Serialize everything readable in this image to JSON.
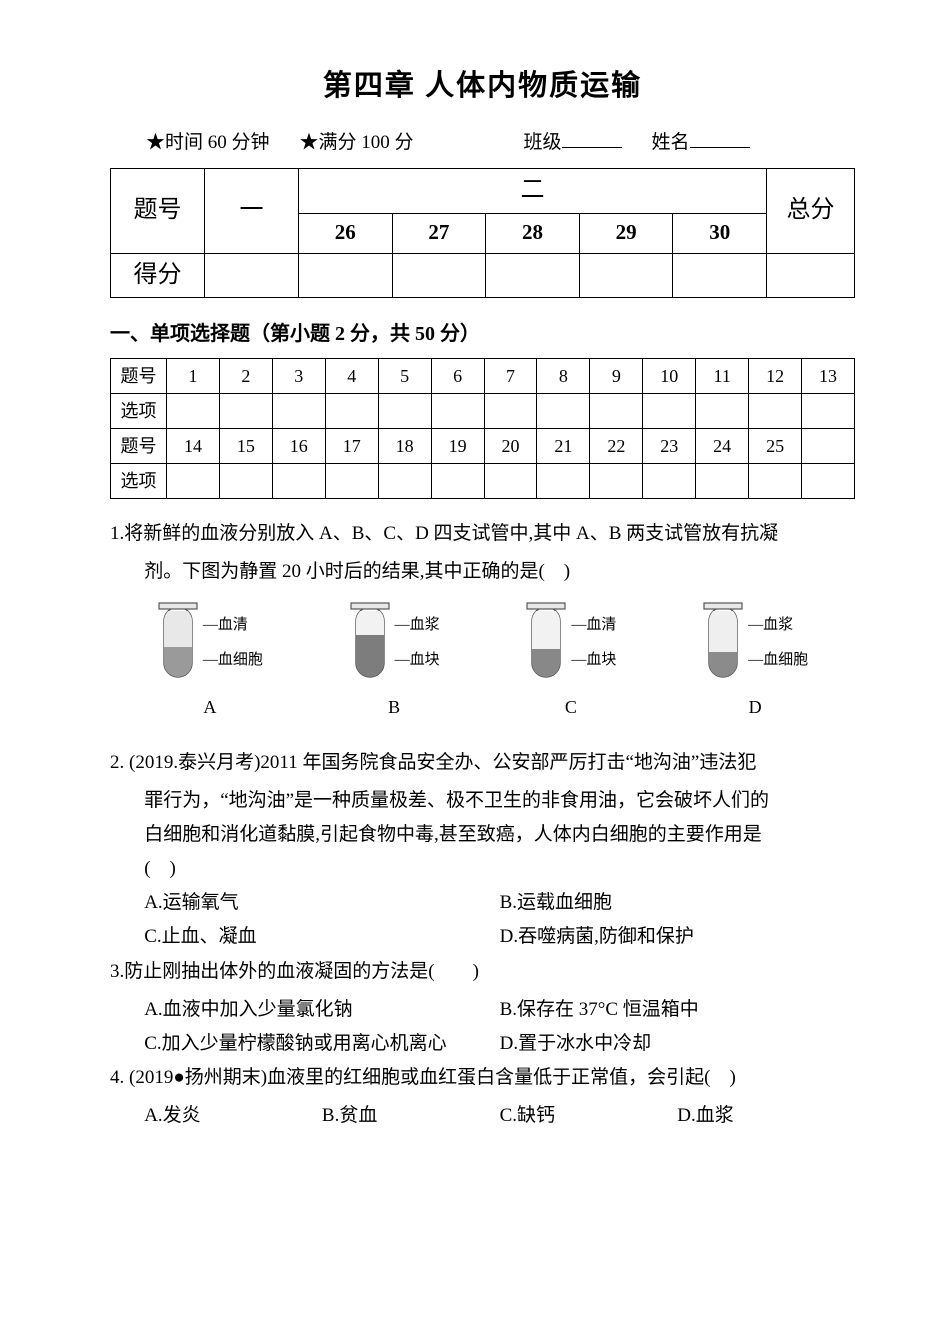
{
  "title": "第四章 人体内物质运输",
  "meta": {
    "time": "★时间 60 分钟",
    "full_score": "★满分 100 分",
    "class_label": "班级",
    "name_label": "姓名"
  },
  "score_table": {
    "row1_label": "题号",
    "col_one": "一",
    "col_two_header": "二",
    "sub_nums": [
      "26",
      "27",
      "28",
      "29",
      "30"
    ],
    "total_label": "总分",
    "row2_label": "得分"
  },
  "section1_header": "一、单项选择题（第小题 2 分，共 50 分）",
  "answer_grid": {
    "label_num": "题号",
    "label_ans": "选项",
    "nums_row1": [
      "1",
      "2",
      "3",
      "4",
      "5",
      "6",
      "7",
      "8",
      "9",
      "10",
      "11",
      "12",
      "13"
    ],
    "nums_row2": [
      "14",
      "15",
      "16",
      "17",
      "18",
      "19",
      "20",
      "21",
      "22",
      "23",
      "24",
      "25",
      ""
    ]
  },
  "q1": {
    "text": "1.将新鲜的血液分别放入 A、B、C、D 四支试管中,其中 A、B 两支试管放有抗凝",
    "cont": "剂。下图为静置 20 小时后的结果,其中正确的是( )",
    "tubes": [
      {
        "letter": "A",
        "top_label": "血清",
        "bottom_label": "血细胞",
        "top_color": "#e8e8e8",
        "bottom_color": "#9a9a9a",
        "bottom_h": 30,
        "top_h": 36
      },
      {
        "letter": "B",
        "top_label": "血浆",
        "bottom_label": "血块",
        "top_color": "#f2f2f2",
        "bottom_color": "#7d7d7d",
        "bottom_h": 42,
        "top_h": 24
      },
      {
        "letter": "C",
        "top_label": "血清",
        "bottom_label": "血块",
        "top_color": "#f2f2f2",
        "bottom_color": "#888888",
        "bottom_h": 28,
        "top_h": 38
      },
      {
        "letter": "D",
        "top_label": "血浆",
        "bottom_label": "血细胞",
        "top_color": "#efefef",
        "bottom_color": "#8b8b8b",
        "bottom_h": 25,
        "top_h": 41
      }
    ],
    "tube_style": {
      "width": 28,
      "height": 70,
      "stroke": "#555555"
    }
  },
  "q2": {
    "text": "2. (2019.泰兴月考)2011 年国务院食品安全办、公安部严厉打击“地沟油”违法犯",
    "cont1": "罪行为，“地沟油”是一种质量极差、极不卫生的非食用油，它会破坏人们的",
    "cont2": "白细胞和消化道黏膜,引起食物中毒,甚至致癌，人体内白细胞的主要作用是",
    "cont3": "( )",
    "opts": {
      "a": "A.运输氧气",
      "b": "B.运载血细胞",
      "c": "C.止血、凝血",
      "d": "D.吞噬病菌,防御和保护"
    }
  },
  "q3": {
    "text": "3.防止刚抽出体外的血液凝固的方法是(  )",
    "opts": {
      "a": "A.血液中加入少量氯化钠",
      "b": "B.保存在 37°C 恒温箱中",
      "c": "C.加入少量柠檬酸钠或用离心机离心",
      "d": "D.置于冰水中冷却"
    }
  },
  "q4": {
    "text": "4. (2019●扬州期末)血液里的红细胞或血红蛋白含量低于正常值，会引起( )",
    "opts": {
      "a": "A.发炎",
      "b": "B.贫血",
      "c": "C.缺钙",
      "d": "D.血浆"
    }
  }
}
